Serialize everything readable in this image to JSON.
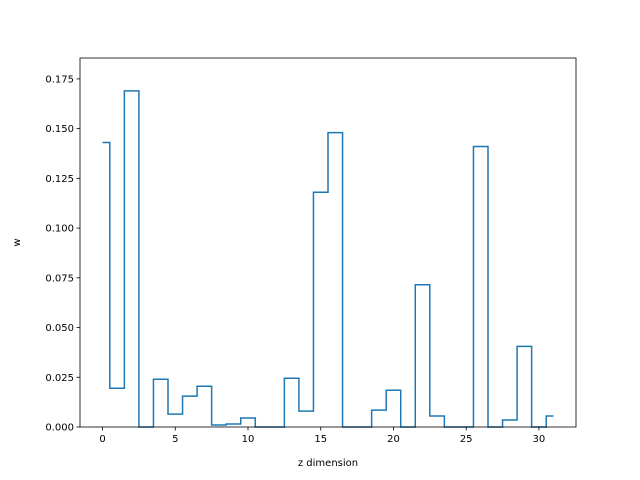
{
  "chart_data": {
    "type": "line",
    "drawstyle": "steps-mid",
    "title": "",
    "xlabel": "z dimension",
    "ylabel": "w",
    "xlim": [
      -1.55,
      32.55
    ],
    "ylim": [
      0,
      0.1855
    ],
    "grid": false,
    "x_ticks": [
      0,
      5,
      10,
      15,
      20,
      25,
      30
    ],
    "y_ticks": [
      0.0,
      0.025,
      0.05,
      0.075,
      0.1,
      0.125,
      0.15,
      0.175
    ],
    "x_tick_labels": [
      "0",
      "5",
      "10",
      "15",
      "20",
      "25",
      "30"
    ],
    "y_tick_labels": [
      "0.000",
      "0.025",
      "0.050",
      "0.075",
      "0.100",
      "0.125",
      "0.150",
      "0.175"
    ],
    "series": [
      {
        "color": "#1f77b4",
        "x": [
          0,
          1,
          2,
          3,
          4,
          5,
          6,
          7,
          8,
          9,
          10,
          11,
          12,
          13,
          14,
          15,
          16,
          17,
          18,
          19,
          20,
          21,
          22,
          23,
          24,
          25,
          26,
          27,
          28,
          29,
          30,
          31
        ],
        "y": [
          0.143,
          0.0195,
          0.169,
          0.0,
          0.024,
          0.0065,
          0.0155,
          0.0205,
          0.001,
          0.0015,
          0.0045,
          0.0,
          0.0,
          0.0245,
          0.008,
          0.118,
          0.148,
          0.0,
          0.0,
          0.0085,
          0.0185,
          0.0,
          0.0715,
          0.0055,
          0.0,
          0.0,
          0.141,
          0.0,
          0.0035,
          0.0405,
          0.0,
          0.0055
        ]
      }
    ]
  }
}
